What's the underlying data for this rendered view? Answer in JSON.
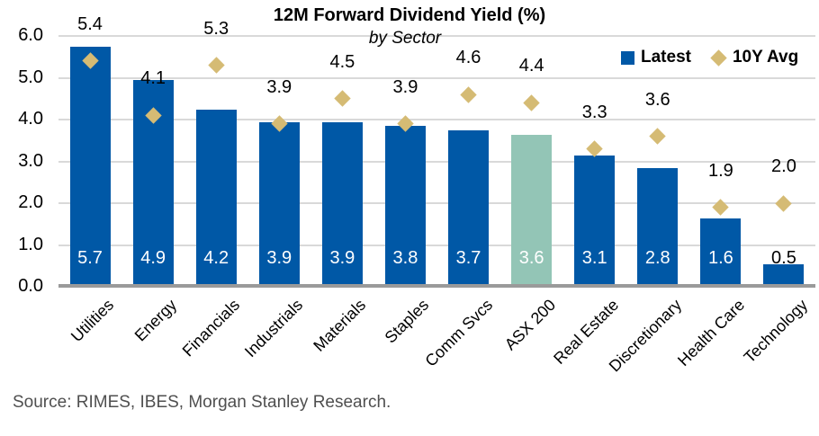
{
  "chart_data": {
    "type": "bar",
    "title": "12M Forward Dividend Yield (%)",
    "subtitle": "by Sector",
    "categories": [
      "Utilities",
      "Energy",
      "Financials",
      "Industrials",
      "Materials",
      "Staples",
      "Comm Svcs",
      "ASX 200",
      "Real Estate",
      "Discretionary",
      "Health Care",
      "Technology"
    ],
    "series": [
      {
        "name": "Latest",
        "type": "bar",
        "values": [
          5.7,
          4.9,
          4.2,
          3.9,
          3.9,
          3.8,
          3.7,
          3.6,
          3.1,
          2.8,
          1.6,
          0.5
        ]
      },
      {
        "name": "10Y Avg",
        "type": "diamond-marker",
        "values": [
          5.4,
          4.1,
          5.3,
          3.9,
          4.5,
          3.9,
          4.6,
          4.4,
          3.3,
          3.6,
          1.9,
          2.0
        ]
      }
    ],
    "highlight_category": "ASX 200",
    "ylim": [
      0,
      6
    ],
    "ytick_labels": [
      "6.0",
      "5.0",
      "4.0",
      "3.0",
      "2.0",
      "1.0",
      "0.0"
    ],
    "ytick_values": [
      6,
      5,
      4,
      3,
      2,
      1,
      0
    ],
    "grid": true,
    "legend_position": "top-right"
  },
  "colors": {
    "bar_blue": "#0058a6",
    "bar_highlight_teal": "#93c5b6",
    "diamond_gold": "#d5bb74",
    "gridline": "#d9d9d9",
    "axis_line": "#9a9a9a",
    "bar_label_inside": "#ffffff",
    "bar_label_outside": "#000000"
  },
  "source": "Source: RIMES, IBES, Morgan Stanley Research."
}
